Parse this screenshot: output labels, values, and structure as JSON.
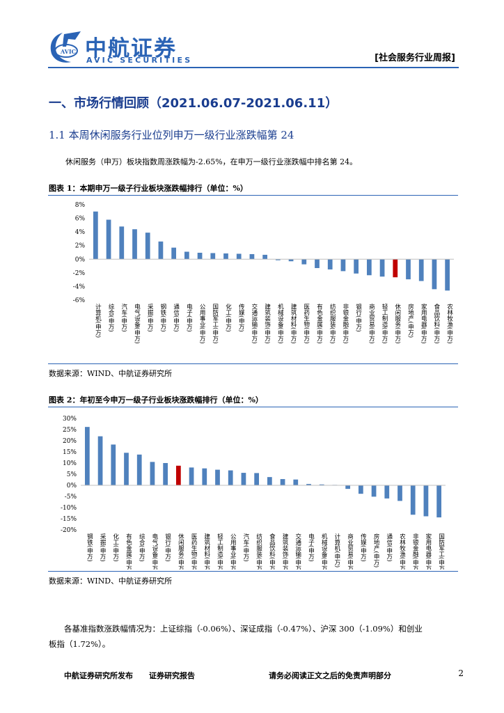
{
  "header": {
    "logo_text": "中航证券",
    "logo_sub": "AVIC SECURITIES",
    "logo_emblem_text": "AVIC",
    "report_tag": "[社会服务行业周报]"
  },
  "section": {
    "h1": "一、市场行情回顾（2021.06.07-2021.06.11）",
    "h2": "1.1 本周休闲服务行业位列申万一级行业涨跌幅第 24",
    "para": "休闲服务（申万）板块指数周涨跌幅为-2.65%，在申万一级行业涨跌幅中排名第 24。"
  },
  "figure1": {
    "title": "图表 1：本期申万一级子行业板块涨跌幅排行（单位：%）",
    "source": "数据来源：WIND、中航证券研究所"
  },
  "figure2": {
    "title": "图表 2：年初至今申万一级子行业板块涨跌幅排行（单位：%）",
    "source": "数据来源：WIND、中航证券研究所"
  },
  "bottom": {
    "line1": "各基准指数涨跌幅情况为：上证综指（-0.06%）、深证成指（-0.47%）、沪深 300（-1.09%）和创业",
    "line2": "板指（1.72%）。"
  },
  "footer": {
    "left1": "中航证券研究所发布",
    "left2": "证券研究报告",
    "right": "请务必阅读正文之后的免责声明部分",
    "page": "2"
  },
  "colors": {
    "bar": "#4f81bd",
    "highlight": "#c00000",
    "brand": "#2a63b5"
  },
  "chart_data": [
    {
      "type": "bar",
      "title": "本期申万一级子行业板块涨跌幅排行（单位：%）",
      "ylim": [
        -6,
        8
      ],
      "yticks": [
        8,
        6,
        4,
        2,
        0,
        -2,
        -4,
        -6
      ],
      "ytick_labels": [
        "8%",
        "6%",
        "4%",
        "2%",
        "0%",
        "-2%",
        "-4%",
        "-6%"
      ],
      "highlight": "休闲服务(申万)",
      "categories": [
        "计算机(申万)",
        "综合(申万)",
        "汽车(申万)",
        "电气设备(申万)",
        "采掘(申万)",
        "钢铁(申万)",
        "通信(申万)",
        "电子(申万)",
        "公用事业(申万)",
        "国防军工(申万)",
        "化工(申万)",
        "传媒(申万)",
        "交通运输(申万)",
        "建筑装饰(申万)",
        "机械设备(申万)",
        "建筑材料(申万)",
        "医药生物(申万)",
        "有色金属(申万)",
        "纺织服装(申万)",
        "非银金融(申万)",
        "银行(申万)",
        "商业贸易(申万)",
        "轻工制造(申万)",
        "休闲服务(申万)",
        "房地产(申万)",
        "家用电器(申万)",
        "食品饮料(申万)",
        "农林牧渔(申万)"
      ],
      "values": [
        7.0,
        5.8,
        4.8,
        4.4,
        3.9,
        2.6,
        1.7,
        1.1,
        0.95,
        0.9,
        0.85,
        0.8,
        0.75,
        0.65,
        -0.15,
        -0.3,
        -0.75,
        -1.3,
        -1.5,
        -1.75,
        -2.1,
        -2.35,
        -2.55,
        -2.65,
        -2.95,
        -3.2,
        -4.4,
        -4.6
      ]
    },
    {
      "type": "bar",
      "title": "年初至今申万一级子行业板块涨跌幅排行（单位：%）",
      "ylim": [
        -20,
        30
      ],
      "yticks": [
        30,
        25,
        20,
        15,
        10,
        5,
        0,
        -5,
        -10,
        -15,
        -20
      ],
      "ytick_labels": [
        "30%",
        "25%",
        "20%",
        "15%",
        "10%",
        "5%",
        "0%",
        "-5%",
        "-10%",
        "-15%",
        "-20%"
      ],
      "highlight": "休闲服务(申万)",
      "categories": [
        "钢铁(申万)",
        "采掘(申万)",
        "化工(申万)",
        "有色金属(申万)",
        "综合(申万)",
        "电气设备(申万)",
        "银行(申万)",
        "休闲服务(申万)",
        "医药生物(申万)",
        "建筑材料(申万)",
        "轻工制造(申万)",
        "公用事业(申万)",
        "汽车(申万)",
        "纺织服装(申万)",
        "食品饮料(申万)",
        "建筑装饰(申万)",
        "交通运输(申万)",
        "电子(申万)",
        "机械设备(申万)",
        "计算机(申万)",
        "商业贸易(申万)",
        "传媒(申万)",
        "房地产(申万)",
        "通信(申万)",
        "农林牧渔(申万)",
        "非银金融(申万)",
        "家用电器(申万)",
        "国防军工(申万)"
      ],
      "values": [
        26.2,
        22.0,
        18.3,
        14.6,
        13.8,
        10.5,
        10.0,
        8.8,
        8.0,
        7.6,
        7.0,
        6.7,
        5.6,
        5.5,
        3.7,
        2.8,
        2.6,
        0.6,
        0.4,
        0.2,
        -1.6,
        -3.8,
        -5.1,
        -5.9,
        -7.0,
        -13.2,
        -13.9,
        -14.4
      ]
    }
  ]
}
